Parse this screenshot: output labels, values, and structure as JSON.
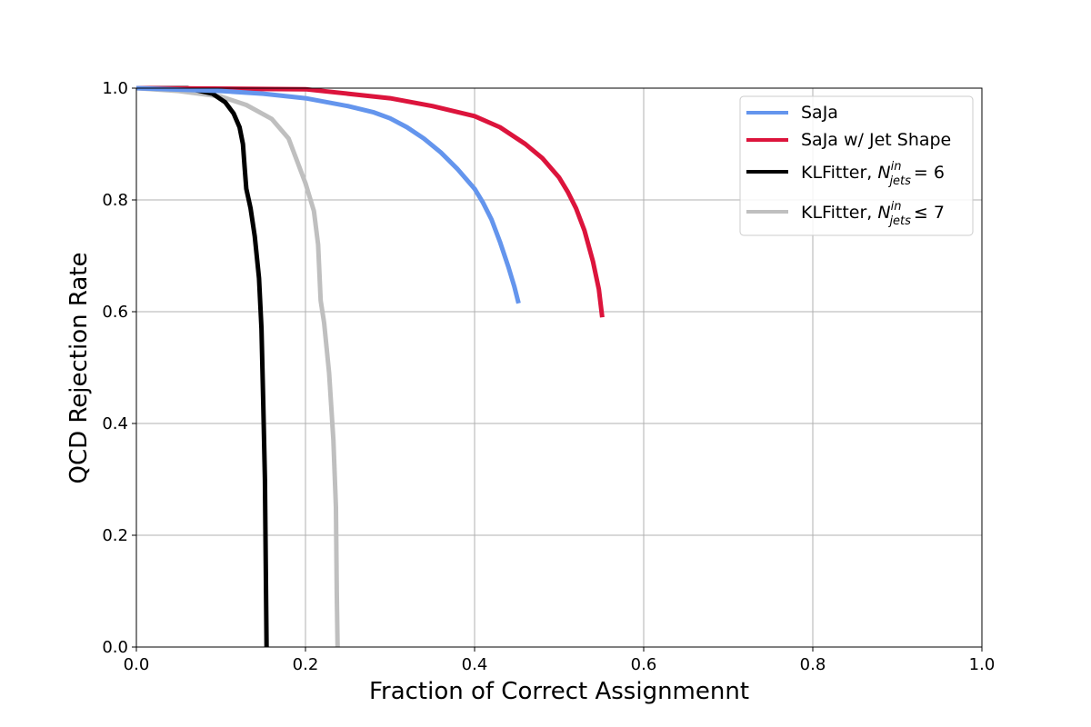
{
  "chart_data": {
    "type": "line",
    "title": "",
    "xlabel": "Fraction of Correct Assignmennt",
    "ylabel": "QCD Rejection Rate",
    "xlim": [
      0.0,
      1.0
    ],
    "ylim": [
      0.0,
      1.0
    ],
    "xticks": [
      "0.0",
      "0.2",
      "0.4",
      "0.6",
      "0.8",
      "1.0"
    ],
    "yticks": [
      "0.0",
      "0.2",
      "0.4",
      "0.6",
      "0.8",
      "1.0"
    ],
    "grid": true,
    "legend_position": "top-right",
    "series": [
      {
        "name": "SaJa",
        "color": "#6495ED",
        "points": [
          [
            0.0,
            1.0
          ],
          [
            0.1,
            0.995
          ],
          [
            0.15,
            0.99
          ],
          [
            0.2,
            0.982
          ],
          [
            0.25,
            0.968
          ],
          [
            0.28,
            0.957
          ],
          [
            0.3,
            0.946
          ],
          [
            0.32,
            0.93
          ],
          [
            0.34,
            0.91
          ],
          [
            0.36,
            0.885
          ],
          [
            0.38,
            0.855
          ],
          [
            0.4,
            0.82
          ],
          [
            0.41,
            0.795
          ],
          [
            0.42,
            0.765
          ],
          [
            0.43,
            0.725
          ],
          [
            0.44,
            0.68
          ],
          [
            0.447,
            0.645
          ],
          [
            0.452,
            0.615
          ]
        ]
      },
      {
        "name": "SaJa w/ Jet Shape",
        "color": "#DC143C",
        "points": [
          [
            0.0,
            1.0
          ],
          [
            0.2,
            0.998
          ],
          [
            0.25,
            0.99
          ],
          [
            0.3,
            0.982
          ],
          [
            0.35,
            0.968
          ],
          [
            0.4,
            0.95
          ],
          [
            0.43,
            0.93
          ],
          [
            0.46,
            0.9
          ],
          [
            0.48,
            0.875
          ],
          [
            0.5,
            0.84
          ],
          [
            0.51,
            0.815
          ],
          [
            0.52,
            0.785
          ],
          [
            0.53,
            0.745
          ],
          [
            0.54,
            0.69
          ],
          [
            0.547,
            0.64
          ],
          [
            0.551,
            0.59
          ]
        ]
      },
      {
        "name": "KLFitter, N_jets^in = 6",
        "color": "#000000",
        "points": [
          [
            0.0,
            1.0
          ],
          [
            0.06,
            1.0
          ],
          [
            0.09,
            0.99
          ],
          [
            0.105,
            0.975
          ],
          [
            0.115,
            0.955
          ],
          [
            0.122,
            0.93
          ],
          [
            0.126,
            0.9
          ],
          [
            0.128,
            0.86
          ],
          [
            0.13,
            0.82
          ],
          [
            0.135,
            0.785
          ],
          [
            0.14,
            0.735
          ],
          [
            0.145,
            0.66
          ],
          [
            0.148,
            0.57
          ],
          [
            0.15,
            0.44
          ],
          [
            0.152,
            0.3
          ],
          [
            0.153,
            0.15
          ],
          [
            0.154,
            0.0
          ]
        ]
      },
      {
        "name": "KLFitter, N_jets^in ≤ 7",
        "color": "#BFBFBF",
        "points": [
          [
            0.0,
            1.0
          ],
          [
            0.05,
            0.995
          ],
          [
            0.1,
            0.985
          ],
          [
            0.13,
            0.97
          ],
          [
            0.16,
            0.945
          ],
          [
            0.18,
            0.91
          ],
          [
            0.2,
            0.83
          ],
          [
            0.21,
            0.78
          ],
          [
            0.215,
            0.72
          ],
          [
            0.218,
            0.62
          ],
          [
            0.222,
            0.58
          ],
          [
            0.228,
            0.49
          ],
          [
            0.233,
            0.37
          ],
          [
            0.236,
            0.25
          ],
          [
            0.237,
            0.1
          ],
          [
            0.238,
            0.0
          ]
        ]
      }
    ]
  }
}
